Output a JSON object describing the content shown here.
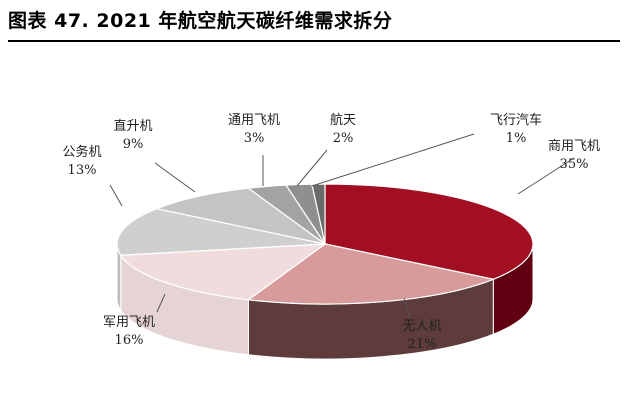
{
  "title": "图表 47. 2021 年航空航天碳纤维需求拆分",
  "chart_data": {
    "type": "pie",
    "title": "图表 47. 2021 年航空航天碳纤维需求拆分",
    "style": "3d-exploded",
    "categories": [
      "商用飞机",
      "无人机",
      "军用飞机",
      "公务机",
      "直升机",
      "通用飞机",
      "航天",
      "飞行汽车"
    ],
    "values": [
      35,
      21,
      16,
      13,
      9,
      3,
      2,
      1
    ],
    "labels": [
      "35%",
      "21%",
      "16%",
      "13%",
      "9%",
      "3%",
      "2%",
      "1%"
    ],
    "colors": [
      "#a30f22",
      "#d89b9b",
      "#f0dcdc",
      "#cfcfcf",
      "#c4c4c4",
      "#a3a3a3",
      "#8f8f8f",
      "#6a6a6a"
    ],
    "side_colors": [
      "#600010",
      "#5e3c3c",
      "#e6d4d4",
      "#bdbdbd",
      "#b0b0b0",
      "#8e8e8e",
      "#7a7a7a",
      "#555555"
    ]
  }
}
